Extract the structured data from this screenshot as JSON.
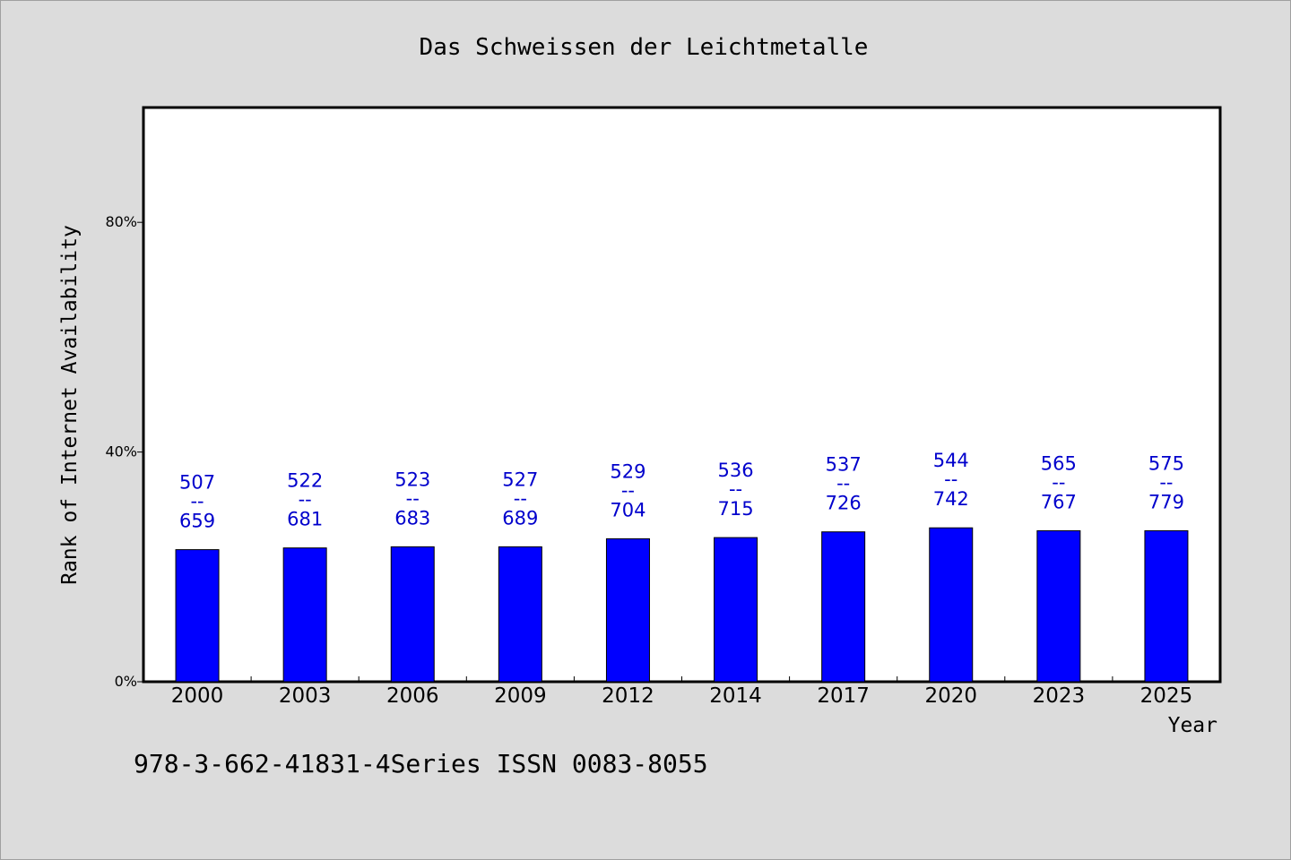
{
  "chart_data": {
    "type": "bar",
    "title": "Das Schweissen der Leichtmetalle",
    "xlabel": "Year",
    "ylabel": "Rank of Internet Availability",
    "categories": [
      "2000",
      "2003",
      "2006",
      "2009",
      "2012",
      "2014",
      "2017",
      "2020",
      "2023",
      "2025"
    ],
    "series": [
      {
        "values": [
          23,
          23.3,
          23.5,
          23.5,
          24.9,
          25.1,
          26.1,
          26.8,
          26.3,
          26.3
        ]
      }
    ],
    "data_labels": [
      {
        "top": "507",
        "sep": "--",
        "bottom": "659"
      },
      {
        "top": "522",
        "sep": "--",
        "bottom": "681"
      },
      {
        "top": "523",
        "sep": "--",
        "bottom": "683"
      },
      {
        "top": "527",
        "sep": "--",
        "bottom": "689"
      },
      {
        "top": "529",
        "sep": "--",
        "bottom": "704"
      },
      {
        "top": "536",
        "sep": "--",
        "bottom": "715"
      },
      {
        "top": "537",
        "sep": "--",
        "bottom": "726"
      },
      {
        "top": "544",
        "sep": "--",
        "bottom": "742"
      },
      {
        "top": "565",
        "sep": "--",
        "bottom": "767"
      },
      {
        "top": "575",
        "sep": "--",
        "bottom": "779"
      }
    ],
    "yticks": [
      {
        "value": 0,
        "label": "0%"
      },
      {
        "value": 40,
        "label": "40%"
      },
      {
        "value": 80,
        "label": "80%"
      }
    ],
    "ylim": [
      0,
      100
    ],
    "grid": false,
    "bar_color": "#0000ff",
    "label_color": "#0000cc"
  },
  "footer_text": "978-3-662-41831-4Series ISSN 0083-8055"
}
